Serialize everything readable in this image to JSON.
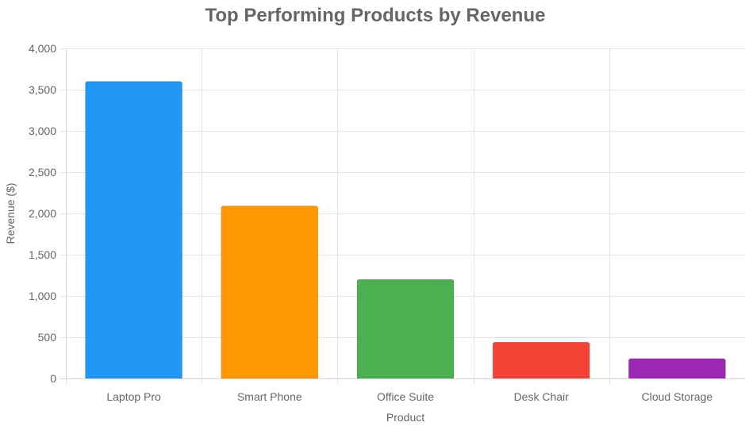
{
  "chart_data": {
    "type": "bar",
    "title": "Top Performing Products by Revenue",
    "xlabel": "Product",
    "ylabel": "Revenue ($)",
    "categories": [
      "Laptop Pro",
      "Smart Phone",
      "Office Suite",
      "Desk Chair",
      "Cloud Storage"
    ],
    "values": [
      3600,
      2090,
      1200,
      440,
      240
    ],
    "colors": [
      "#2196F3",
      "#FF9800",
      "#4CAF50",
      "#F44336",
      "#9C27B0"
    ],
    "ylim": [
      0,
      4000
    ],
    "y_ticks": [
      0,
      500,
      1000,
      1500,
      2000,
      2500,
      3000,
      3500,
      4000
    ],
    "y_tick_labels": [
      "0",
      "500",
      "1,000",
      "1,500",
      "2,000",
      "2,500",
      "3,000",
      "3,500",
      "4,000"
    ],
    "grid": true,
    "legend": "none"
  }
}
